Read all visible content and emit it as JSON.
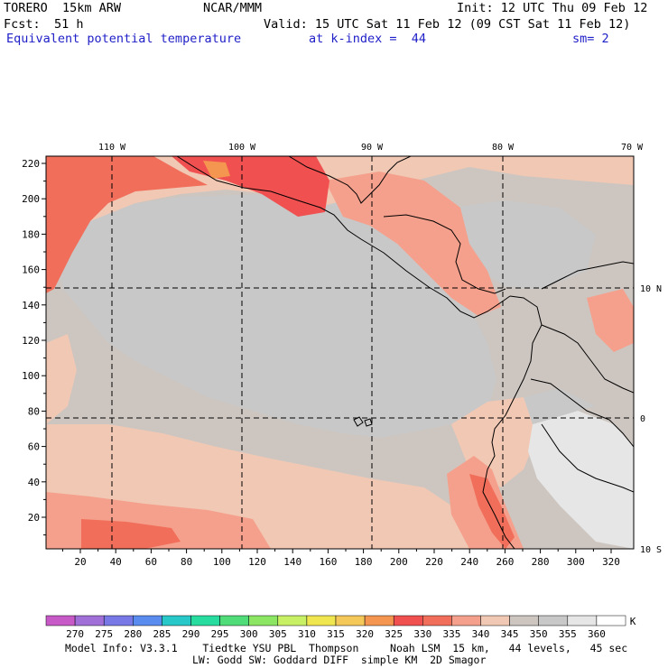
{
  "header": {
    "model": "TORERO  15km ARW",
    "org": "NCAR/MMM",
    "init": "Init: 12 UTC Thu 09 Feb 12",
    "fcst_label": "Fcst:",
    "fcst_hours": "51 h",
    "valid": "Valid: 15 UTC Sat 11 Feb 12 (09 CST Sat 11 Feb 12)",
    "field": "Equivalent potential temperature",
    "level": "at k-index =  44",
    "smoothing": "sm= 2"
  },
  "map": {
    "top_lon_labels": [
      "110 W",
      "100 W",
      "90 W",
      "80 W",
      "70 W"
    ],
    "right_lat_labels": [
      "10 N",
      "0",
      "10 S"
    ],
    "y_ticks": [
      "220",
      "200",
      "180",
      "160",
      "140",
      "120",
      "100",
      "80",
      "60",
      "40",
      "20"
    ],
    "x_ticks": [
      "20",
      "40",
      "60",
      "80",
      "100",
      "120",
      "140",
      "160",
      "180",
      "200",
      "220",
      "240",
      "260",
      "280",
      "300",
      "320"
    ],
    "background_color": "#cdc6c0"
  },
  "colorbar": {
    "labels": [
      "270",
      "275",
      "280",
      "285",
      "290",
      "295",
      "300",
      "305",
      "310",
      "315",
      "320",
      "325",
      "330",
      "335",
      "340",
      "345",
      "350",
      "355",
      "360"
    ],
    "unit": "K",
    "colors": [
      "#c85ac8",
      "#a070d8",
      "#7878e6",
      "#5a8cf0",
      "#28c8c8",
      "#28dca0",
      "#50dc78",
      "#8ce664",
      "#c8f064",
      "#f0e650",
      "#f5c85a",
      "#f59650",
      "#f05050",
      "#f06e5a",
      "#f5a08c",
      "#f0c8b4",
      "#cdc6c0",
      "#c8c8c8",
      "#e6e6e6",
      "#ffffff"
    ]
  },
  "footer": {
    "line1": "Model Info: V3.3.1    Tiedtke YSU PBL  Thompson     Noah LSM  15 km,   44 levels,   45 sec",
    "line2": "LW: Godd SW: Goddard DIFF  simple KM  2D Smagor"
  }
}
